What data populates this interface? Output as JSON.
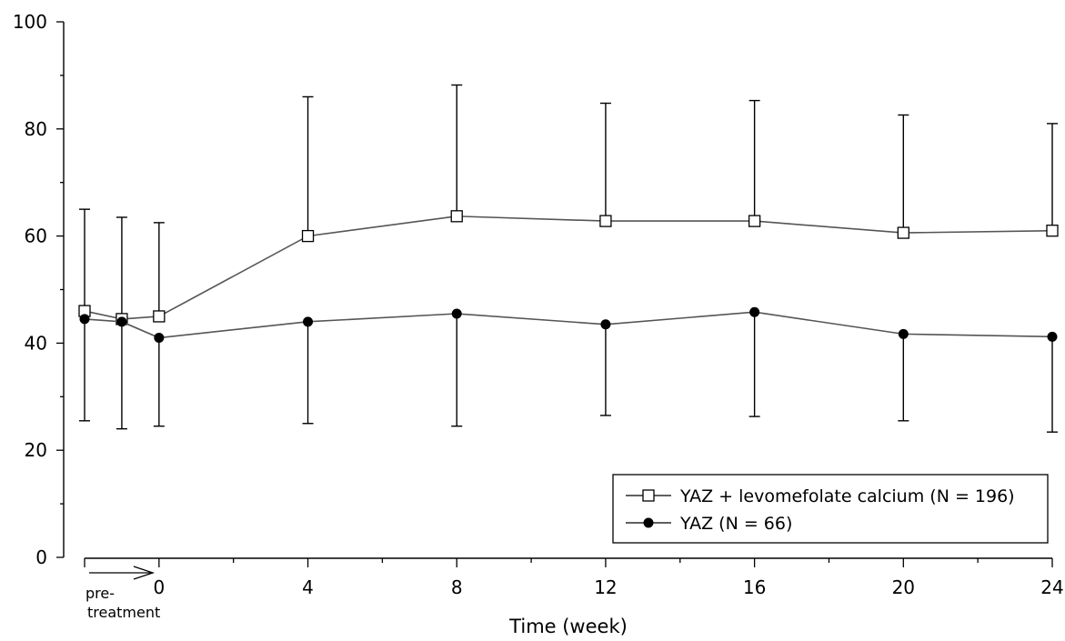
{
  "chart_data": {
    "type": "line",
    "xlabel": "Time (week)",
    "ylabel": "",
    "ylim": [
      0,
      100
    ],
    "y_ticks": [
      0,
      20,
      40,
      60,
      80,
      100
    ],
    "xlim": [
      -2,
      24
    ],
    "x_ticks": [
      0,
      4,
      8,
      12,
      16,
      20,
      24
    ],
    "pretreatment_label": [
      "pre-",
      "treatment"
    ],
    "grid": false,
    "legend_position": "bottom-right",
    "series": [
      {
        "name": "YAZ + levomefolate calcium (N = 196)",
        "marker": "open-square",
        "error_bar": "up",
        "points": [
          {
            "x": -2,
            "y": 46,
            "err": 19
          },
          {
            "x": -1,
            "y": 44.5,
            "err": 19
          },
          {
            "x": 0,
            "y": 45,
            "err": 17.5
          },
          {
            "x": 4,
            "y": 60,
            "err": 26
          },
          {
            "x": 8,
            "y": 63.7,
            "err": 24.5
          },
          {
            "x": 12,
            "y": 62.8,
            "err": 22
          },
          {
            "x": 16,
            "y": 62.8,
            "err": 22.5
          },
          {
            "x": 20,
            "y": 60.6,
            "err": 22
          },
          {
            "x": 24,
            "y": 61,
            "err": 20
          }
        ]
      },
      {
        "name": "YAZ (N = 66)",
        "marker": "filled-circle",
        "error_bar": "down",
        "points": [
          {
            "x": -2,
            "y": 44.5,
            "err": 19
          },
          {
            "x": -1,
            "y": 44,
            "err": 20
          },
          {
            "x": 0,
            "y": 41,
            "err": 16.5
          },
          {
            "x": 4,
            "y": 44,
            "err": 19
          },
          {
            "x": 8,
            "y": 45.5,
            "err": 21
          },
          {
            "x": 12,
            "y": 43.5,
            "err": 17
          },
          {
            "x": 16,
            "y": 45.8,
            "err": 19.5
          },
          {
            "x": 20,
            "y": 41.7,
            "err": 16.2
          },
          {
            "x": 24,
            "y": 41.2,
            "err": 17.8
          }
        ]
      }
    ]
  }
}
